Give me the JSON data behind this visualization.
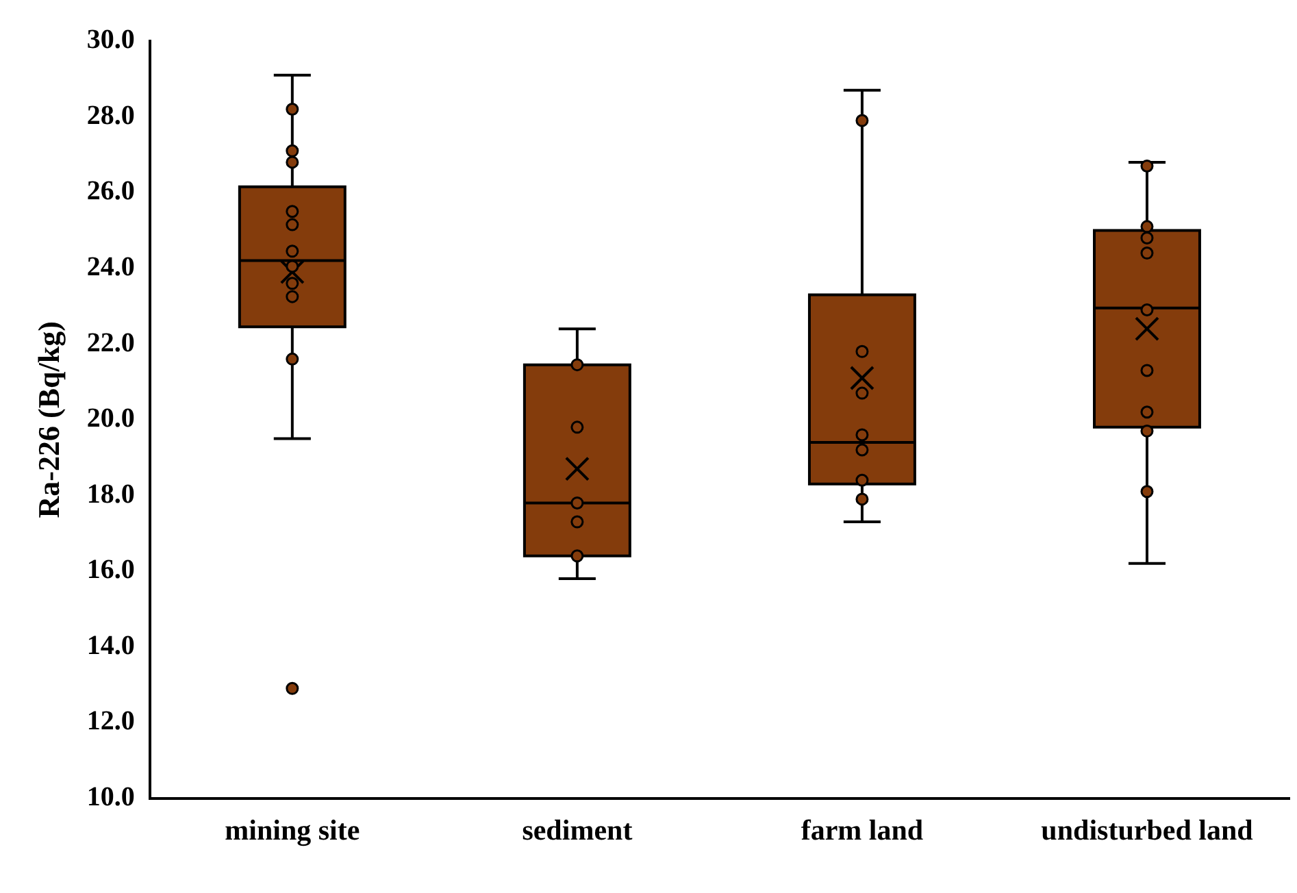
{
  "chart_data": {
    "type": "box",
    "ylabel": "Ra-226 (Bq/kg)",
    "categories": [
      "mining site",
      "sediment",
      "farm land",
      "undisturbed land"
    ],
    "ylim": [
      10,
      30
    ],
    "yticks": [
      {
        "value": 10,
        "label": "10.0"
      },
      {
        "value": 12,
        "label": "12.0"
      },
      {
        "value": 14,
        "label": "14.0"
      },
      {
        "value": 16,
        "label": "16.0"
      },
      {
        "value": 18,
        "label": "18.0"
      },
      {
        "value": 20,
        "label": "20.0"
      },
      {
        "value": 22,
        "label": "22.0"
      },
      {
        "value": 24,
        "label": "24.0"
      },
      {
        "value": 26,
        "label": "26.0"
      },
      {
        "value": 28,
        "label": "28.0"
      },
      {
        "value": 30,
        "label": "30.0"
      }
    ],
    "grid": false,
    "legend": false,
    "series": [
      {
        "color": "#843c0c",
        "boxes": [
          {
            "low": 19.5,
            "q1": 22.45,
            "median": 24.2,
            "q3": 26.15,
            "high": 29.1,
            "mean": 23.9,
            "outliers": [
              12.9
            ]
          },
          {
            "low": 15.8,
            "q1": 16.4,
            "median": 17.8,
            "q3": 21.45,
            "high": 22.4,
            "mean": 18.7
          },
          {
            "low": 17.3,
            "q1": 18.3,
            "median": 19.4,
            "q3": 23.3,
            "high": 28.7,
            "mean": 21.1
          },
          {
            "low": 16.2,
            "q1": 19.8,
            "median": 22.95,
            "q3": 25.0,
            "high": 26.8,
            "mean": 22.4
          }
        ]
      },
      {
        "type": "scatter",
        "color": "#843c0c",
        "marker": "circle",
        "x": [
          "mining site",
          "mining site",
          "mining site",
          "mining site",
          "mining site",
          "mining site",
          "mining site",
          "mining site",
          "mining site",
          "mining site",
          "sediment",
          "sediment",
          "sediment",
          "sediment",
          "sediment",
          "farm land",
          "farm land",
          "farm land",
          "farm land",
          "farm land",
          "farm land",
          "farm land",
          "undisturbed land",
          "undisturbed land",
          "undisturbed land",
          "undisturbed land",
          "undisturbed land",
          "undisturbed land",
          "undisturbed land",
          "undisturbed land",
          "undisturbed land"
        ],
        "values": [
          28.2,
          27.1,
          26.8,
          25.5,
          25.15,
          24.45,
          24.05,
          23.6,
          23.25,
          21.6,
          21.45,
          19.8,
          17.8,
          17.3,
          16.4,
          27.9,
          21.8,
          20.7,
          19.6,
          19.2,
          18.4,
          17.9,
          26.7,
          25.1,
          24.8,
          24.4,
          22.9,
          21.3,
          20.2,
          19.7,
          18.1
        ]
      }
    ]
  }
}
